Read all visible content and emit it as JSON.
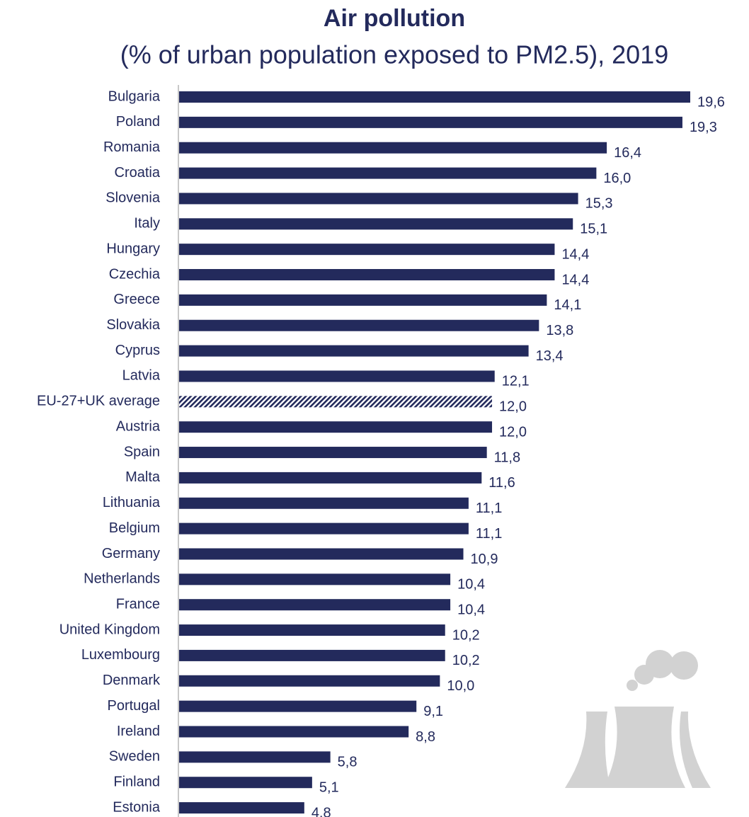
{
  "chart_data": {
    "type": "hbar",
    "title": "Air pollution",
    "subtitle": "(% of urban population exposed to PM2.5), 2019",
    "categories": [
      "Bulgaria",
      "Poland",
      "Romania",
      "Croatia",
      "Slovenia",
      "Italy",
      "Hungary",
      "Czechia",
      "Greece",
      "Slovakia",
      "Cyprus",
      "Latvia",
      "EU-27+UK average",
      "Austria",
      "Spain",
      "Malta",
      "Lithuania",
      "Belgium",
      "Germany",
      "Netherlands",
      "France",
      "United Kingdom",
      "Luxembourg",
      "Denmark",
      "Portugal",
      "Ireland",
      "Sweden",
      "Finland",
      "Estonia"
    ],
    "values": [
      19.6,
      19.3,
      16.4,
      16.0,
      15.3,
      15.1,
      14.4,
      14.4,
      14.1,
      13.8,
      13.4,
      12.1,
      12.0,
      12.0,
      11.8,
      11.6,
      11.1,
      11.1,
      10.9,
      10.4,
      10.4,
      10.2,
      10.2,
      10.0,
      9.1,
      8.8,
      5.8,
      5.1,
      4.8
    ],
    "value_labels": [
      "19,6",
      "19,3",
      "16,4",
      "16,0",
      "15,3",
      "15,1",
      "14,4",
      "14,4",
      "14,1",
      "13,8",
      "13,4",
      "12,1",
      "12,0",
      "12,0",
      "11,8",
      "11,6",
      "11,1",
      "11,1",
      "10,9",
      "10,4",
      "10,4",
      "10,2",
      "10,2",
      "10,0",
      "9,1",
      "8,8",
      "5,8",
      "5,1",
      "4,8"
    ],
    "color": "#232a5c",
    "hatched": [
      12
    ]
  }
}
